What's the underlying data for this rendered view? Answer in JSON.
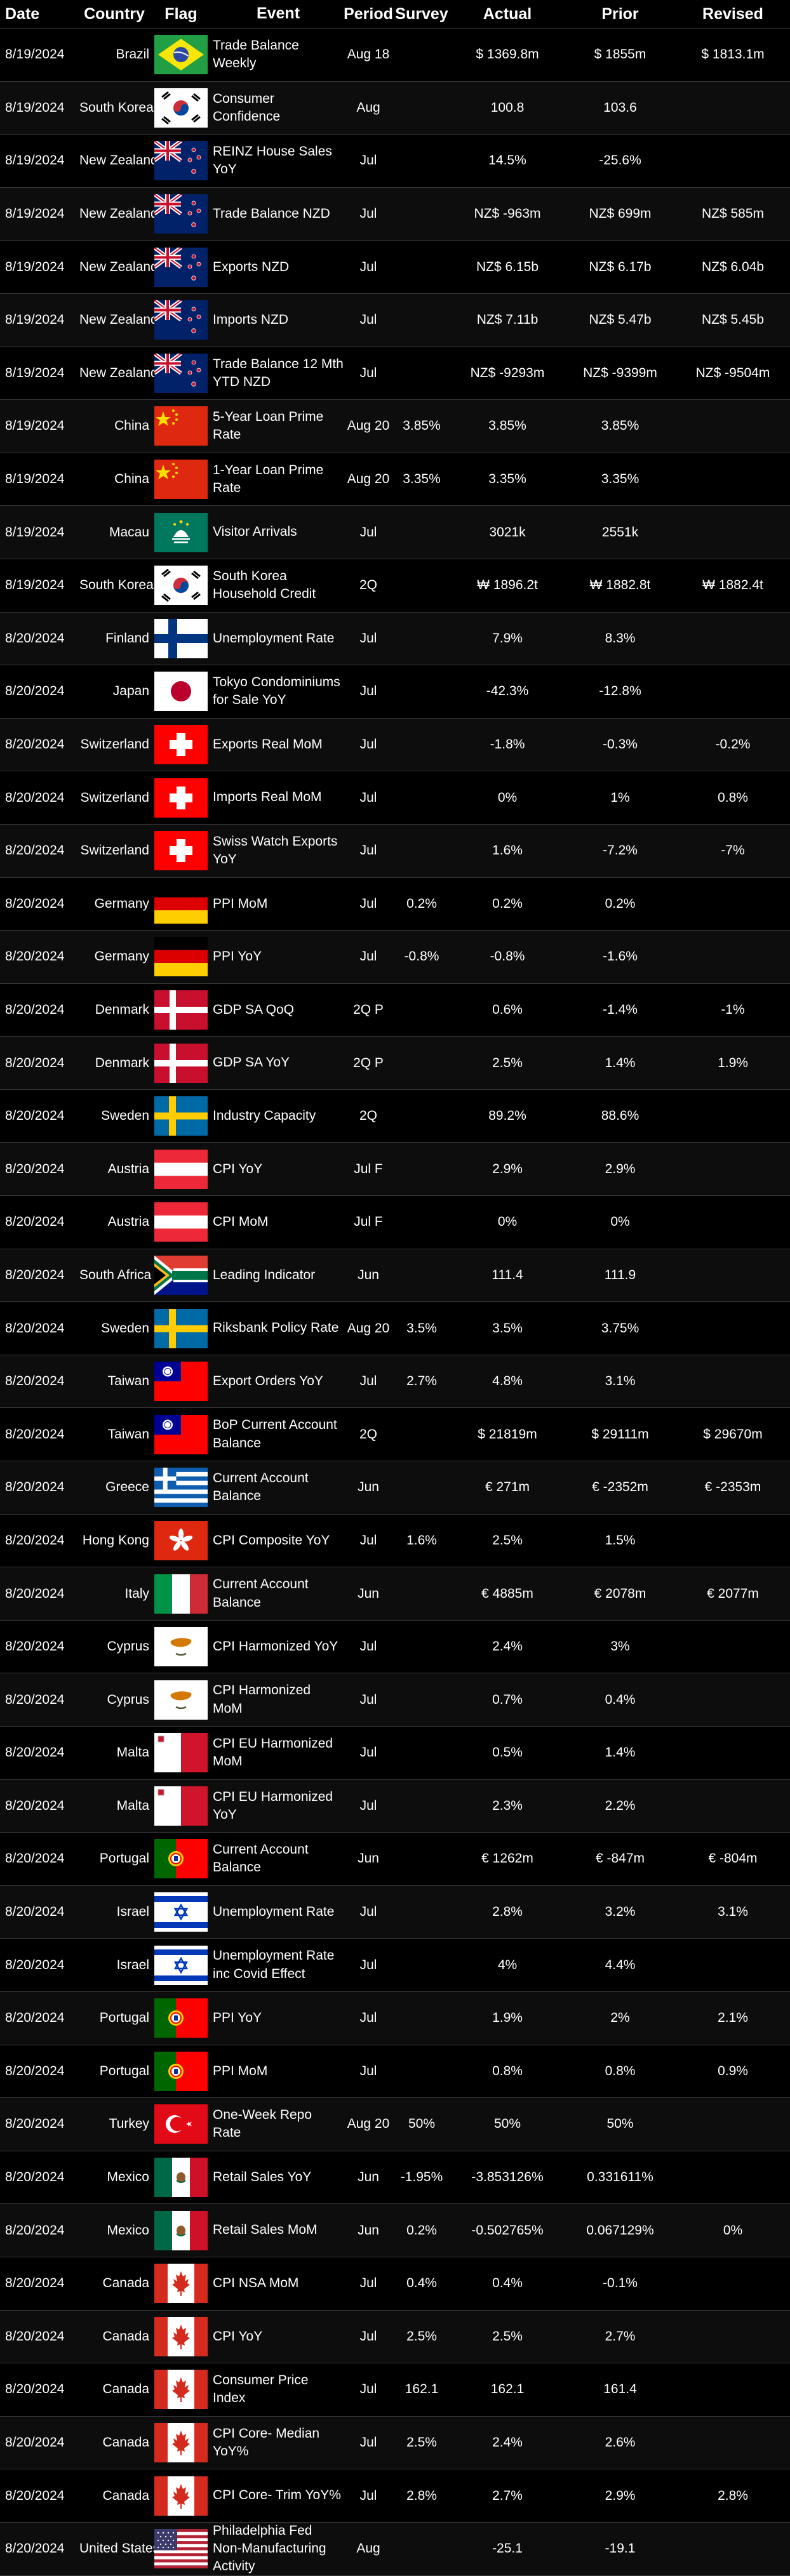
{
  "headers": {
    "date": "Date",
    "country": "Country",
    "flag": "Flag",
    "event": "Event",
    "period": "Period",
    "survey": "Survey",
    "actual": "Actual",
    "prior": "Prior",
    "revised": "Revised"
  },
  "rows": [
    {
      "date": "8/19/2024",
      "country": "Brazil",
      "flag": "brazil-flag",
      "event": "Trade Balance Weekly",
      "period": "Aug 18",
      "survey": "",
      "actual": "$ 1369.8m",
      "prior": "$ 1855m",
      "revised": "$ 1813.1m"
    },
    {
      "date": "8/19/2024",
      "country": "South Korea",
      "flag": "south-korea-flag",
      "event": "Consumer Confidence",
      "period": "Aug",
      "survey": "",
      "actual": "100.8",
      "prior": "103.6",
      "revised": ""
    },
    {
      "date": "8/19/2024",
      "country": "New Zealand",
      "flag": "new-zealand-flag",
      "event": "REINZ House Sales YoY",
      "period": "Jul",
      "survey": "",
      "actual": "14.5%",
      "prior": "-25.6%",
      "revised": ""
    },
    {
      "date": "8/19/2024",
      "country": "New Zealand",
      "flag": "new-zealand-flag",
      "event": "Trade Balance NZD",
      "period": "Jul",
      "survey": "",
      "actual": "NZ$ -963m",
      "prior": "NZ$ 699m",
      "revised": "NZ$ 585m"
    },
    {
      "date": "8/19/2024",
      "country": "New Zealand",
      "flag": "new-zealand-flag",
      "event": "Exports NZD",
      "period": "Jul",
      "survey": "",
      "actual": "NZ$ 6.15b",
      "prior": "NZ$ 6.17b",
      "revised": "NZ$ 6.04b"
    },
    {
      "date": "8/19/2024",
      "country": "New Zealand",
      "flag": "new-zealand-flag",
      "event": "Imports NZD",
      "period": "Jul",
      "survey": "",
      "actual": "NZ$ 7.11b",
      "prior": "NZ$ 5.47b",
      "revised": "NZ$ 5.45b"
    },
    {
      "date": "8/19/2024",
      "country": "New Zealand",
      "flag": "new-zealand-flag",
      "event": "Trade Balance 12 Mth YTD NZD",
      "period": "Jul",
      "survey": "",
      "actual": "NZ$ -9293m",
      "prior": "NZ$ -9399m",
      "revised": "NZ$ -9504m"
    },
    {
      "date": "8/19/2024",
      "country": "China",
      "flag": "china-flag",
      "event": "5-Year Loan Prime Rate",
      "period": "Aug 20",
      "survey": "3.85%",
      "actual": "3.85%",
      "prior": "3.85%",
      "revised": ""
    },
    {
      "date": "8/19/2024",
      "country": "China",
      "flag": "china-flag",
      "event": "1-Year Loan Prime Rate",
      "period": "Aug 20",
      "survey": "3.35%",
      "actual": "3.35%",
      "prior": "3.35%",
      "revised": ""
    },
    {
      "date": "8/19/2024",
      "country": "Macau",
      "flag": "macau-flag",
      "event": "Visitor Arrivals",
      "period": "Jul",
      "survey": "",
      "actual": "3021k",
      "prior": "2551k",
      "revised": ""
    },
    {
      "date": "8/19/2024",
      "country": "South Korea",
      "flag": "south-korea-flag",
      "event": "South Korea Household Credit",
      "period": "2Q",
      "survey": "",
      "actual": "₩ 1896.2t",
      "prior": "₩ 1882.8t",
      "revised": "₩ 1882.4t"
    },
    {
      "date": "8/20/2024",
      "country": "Finland",
      "flag": "finland-flag",
      "event": "Unemployment Rate",
      "period": "Jul",
      "survey": "",
      "actual": "7.9%",
      "prior": "8.3%",
      "revised": ""
    },
    {
      "date": "8/20/2024",
      "country": "Japan",
      "flag": "japan-flag",
      "event": "Tokyo Condominiums for Sale YoY",
      "period": "Jul",
      "survey": "",
      "actual": "-42.3%",
      "prior": "-12.8%",
      "revised": ""
    },
    {
      "date": "8/20/2024",
      "country": "Switzerland",
      "flag": "switzerland-flag",
      "event": "Exports Real MoM",
      "period": "Jul",
      "survey": "",
      "actual": "-1.8%",
      "prior": "-0.3%",
      "revised": "-0.2%"
    },
    {
      "date": "8/20/2024",
      "country": "Switzerland",
      "flag": "switzerland-flag",
      "event": "Imports Real MoM",
      "period": "Jul",
      "survey": "",
      "actual": "0%",
      "prior": "1%",
      "revised": "0.8%"
    },
    {
      "date": "8/20/2024",
      "country": "Switzerland",
      "flag": "switzerland-flag",
      "event": "Swiss Watch Exports YoY",
      "period": "Jul",
      "survey": "",
      "actual": "1.6%",
      "prior": "-7.2%",
      "revised": "-7%"
    },
    {
      "date": "8/20/2024",
      "country": "Germany",
      "flag": "germany-flag",
      "event": "PPI MoM",
      "period": "Jul",
      "survey": "0.2%",
      "actual": "0.2%",
      "prior": "0.2%",
      "revised": ""
    },
    {
      "date": "8/20/2024",
      "country": "Germany",
      "flag": "germany-flag",
      "event": "PPI YoY",
      "period": "Jul",
      "survey": "-0.8%",
      "actual": "-0.8%",
      "prior": "-1.6%",
      "revised": ""
    },
    {
      "date": "8/20/2024",
      "country": "Denmark",
      "flag": "denmark-flag",
      "event": "GDP SA QoQ",
      "period": "2Q P",
      "survey": "",
      "actual": "0.6%",
      "prior": "-1.4%",
      "revised": "-1%"
    },
    {
      "date": "8/20/2024",
      "country": "Denmark",
      "flag": "denmark-flag",
      "event": "GDP SA YoY",
      "period": "2Q P",
      "survey": "",
      "actual": "2.5%",
      "prior": "1.4%",
      "revised": "1.9%"
    },
    {
      "date": "8/20/2024",
      "country": "Sweden",
      "flag": "sweden-flag",
      "event": "Industry Capacity",
      "period": "2Q",
      "survey": "",
      "actual": "89.2%",
      "prior": "88.6%",
      "revised": ""
    },
    {
      "date": "8/20/2024",
      "country": "Austria",
      "flag": "austria-flag",
      "event": "CPI YoY",
      "period": "Jul F",
      "survey": "",
      "actual": "2.9%",
      "prior": "2.9%",
      "revised": ""
    },
    {
      "date": "8/20/2024",
      "country": "Austria",
      "flag": "austria-flag",
      "event": "CPI MoM",
      "period": "Jul F",
      "survey": "",
      "actual": "0%",
      "prior": "0%",
      "revised": ""
    },
    {
      "date": "8/20/2024",
      "country": "South Africa",
      "flag": "south-africa-flag",
      "event": "Leading Indicator",
      "period": "Jun",
      "survey": "",
      "actual": "111.4",
      "prior": "111.9",
      "revised": ""
    },
    {
      "date": "8/20/2024",
      "country": "Sweden",
      "flag": "sweden-flag",
      "event": "Riksbank Policy Rate",
      "period": "Aug 20",
      "survey": "3.5%",
      "actual": "3.5%",
      "prior": "3.75%",
      "revised": ""
    },
    {
      "date": "8/20/2024",
      "country": "Taiwan",
      "flag": "taiwan-flag",
      "event": "Export Orders YoY",
      "period": "Jul",
      "survey": "2.7%",
      "actual": "4.8%",
      "prior": "3.1%",
      "revised": ""
    },
    {
      "date": "8/20/2024",
      "country": "Taiwan",
      "flag": "taiwan-flag",
      "event": "BoP Current Account Balance",
      "period": "2Q",
      "survey": "",
      "actual": "$ 21819m",
      "prior": "$ 29111m",
      "revised": "$ 29670m"
    },
    {
      "date": "8/20/2024",
      "country": "Greece",
      "flag": "greece-flag",
      "event": "Current Account Balance",
      "period": "Jun",
      "survey": "",
      "actual": "€ 271m",
      "prior": "€ -2352m",
      "revised": "€ -2353m"
    },
    {
      "date": "8/20/2024",
      "country": "Hong Kong",
      "flag": "hong-kong-flag",
      "event": "CPI Composite YoY",
      "period": "Jul",
      "survey": "1.6%",
      "actual": "2.5%",
      "prior": "1.5%",
      "revised": ""
    },
    {
      "date": "8/20/2024",
      "country": "Italy",
      "flag": "italy-flag",
      "event": "Current Account Balance",
      "period": "Jun",
      "survey": "",
      "actual": "€ 4885m",
      "prior": "€ 2078m",
      "revised": "€ 2077m"
    },
    {
      "date": "8/20/2024",
      "country": "Cyprus",
      "flag": "cyprus-flag",
      "event": "CPI Harmonized YoY",
      "period": "Jul",
      "survey": "",
      "actual": "2.4%",
      "prior": "3%",
      "revised": ""
    },
    {
      "date": "8/20/2024",
      "country": "Cyprus",
      "flag": "cyprus-flag",
      "event": "CPI Harmonized MoM",
      "period": "Jul",
      "survey": "",
      "actual": "0.7%",
      "prior": "0.4%",
      "revised": ""
    },
    {
      "date": "8/20/2024",
      "country": "Malta",
      "flag": "malta-flag",
      "event": "CPI EU Harmonized MoM",
      "period": "Jul",
      "survey": "",
      "actual": "0.5%",
      "prior": "1.4%",
      "revised": ""
    },
    {
      "date": "8/20/2024",
      "country": "Malta",
      "flag": "malta-flag",
      "event": "CPI EU Harmonized YoY",
      "period": "Jul",
      "survey": "",
      "actual": "2.3%",
      "prior": "2.2%",
      "revised": ""
    },
    {
      "date": "8/20/2024",
      "country": "Portugal",
      "flag": "portugal-flag",
      "event": "Current Account Balance",
      "period": "Jun",
      "survey": "",
      "actual": "€ 1262m",
      "prior": "€ -847m",
      "revised": "€ -804m"
    },
    {
      "date": "8/20/2024",
      "country": "Israel",
      "flag": "israel-flag",
      "event": "Unemployment Rate",
      "period": "Jul",
      "survey": "",
      "actual": "2.8%",
      "prior": "3.2%",
      "revised": "3.1%"
    },
    {
      "date": "8/20/2024",
      "country": "Israel",
      "flag": "israel-flag",
      "event": "Unemployment Rate inc Covid Effect",
      "period": "Jul",
      "survey": "",
      "actual": "4%",
      "prior": "4.4%",
      "revised": ""
    },
    {
      "date": "8/20/2024",
      "country": "Portugal",
      "flag": "portugal-flag",
      "event": "PPI YoY",
      "period": "Jul",
      "survey": "",
      "actual": "1.9%",
      "prior": "2%",
      "revised": "2.1%"
    },
    {
      "date": "8/20/2024",
      "country": "Portugal",
      "flag": "portugal-flag",
      "event": "PPI MoM",
      "period": "Jul",
      "survey": "",
      "actual": "0.8%",
      "prior": "0.8%",
      "revised": "0.9%"
    },
    {
      "date": "8/20/2024",
      "country": "Turkey",
      "flag": "turkey-flag",
      "event": "One-Week Repo Rate",
      "period": "Aug 20",
      "survey": "50%",
      "actual": "50%",
      "prior": "50%",
      "revised": ""
    },
    {
      "date": "8/20/2024",
      "country": "Mexico",
      "flag": "mexico-flag",
      "event": "Retail Sales YoY",
      "period": "Jun",
      "survey": "-1.95%",
      "actual": "-3.853126%",
      "prior": "0.331611%",
      "revised": ""
    },
    {
      "date": "8/20/2024",
      "country": "Mexico",
      "flag": "mexico-flag",
      "event": "Retail Sales MoM",
      "period": "Jun",
      "survey": "0.2%",
      "actual": "-0.502765%",
      "prior": "0.067129%",
      "revised": "0%"
    },
    {
      "date": "8/20/2024",
      "country": "Canada",
      "flag": "canada-flag",
      "event": "CPI NSA MoM",
      "period": "Jul",
      "survey": "0.4%",
      "actual": "0.4%",
      "prior": "-0.1%",
      "revised": ""
    },
    {
      "date": "8/20/2024",
      "country": "Canada",
      "flag": "canada-flag",
      "event": "CPI YoY",
      "period": "Jul",
      "survey": "2.5%",
      "actual": "2.5%",
      "prior": "2.7%",
      "revised": ""
    },
    {
      "date": "8/20/2024",
      "country": "Canada",
      "flag": "canada-flag",
      "event": "Consumer Price Index",
      "period": "Jul",
      "survey": "162.1",
      "actual": "162.1",
      "prior": "161.4",
      "revised": ""
    },
    {
      "date": "8/20/2024",
      "country": "Canada",
      "flag": "canada-flag",
      "event": "CPI Core- Median YoY%",
      "period": "Jul",
      "survey": "2.5%",
      "actual": "2.4%",
      "prior": "2.6%",
      "revised": ""
    },
    {
      "date": "8/20/2024",
      "country": "Canada",
      "flag": "canada-flag",
      "event": "CPI Core- Trim YoY%",
      "period": "Jul",
      "survey": "2.8%",
      "actual": "2.7%",
      "prior": "2.9%",
      "revised": "2.8%"
    },
    {
      "date": "8/20/2024",
      "country": "United States",
      "flag": "united-states-flag",
      "event": "Philadelphia Fed Non-Manufacturing Activity",
      "period": "Aug",
      "survey": "",
      "actual": "-25.1",
      "prior": "-19.1",
      "revised": ""
    }
  ]
}
